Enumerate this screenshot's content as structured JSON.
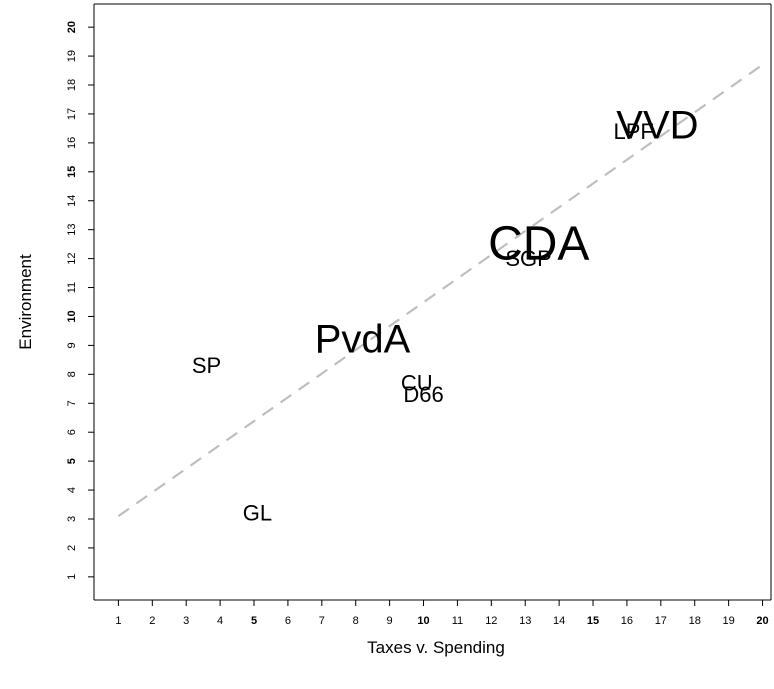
{
  "chart_data": {
    "type": "scatter",
    "title": "",
    "xlabel": "Taxes v. Spending",
    "ylabel": "Environment",
    "xlim": [
      0.28,
      20.25
    ],
    "ylim": [
      0.2,
      20.8
    ],
    "x_ticks": [
      "1",
      "2",
      "3",
      "4",
      "5",
      "6",
      "7",
      "8",
      "9",
      "10",
      "11",
      "12",
      "13",
      "14",
      "15",
      "16",
      "17",
      "18",
      "19",
      "20"
    ],
    "y_ticks": [
      "1",
      "2",
      "3",
      "4",
      "5",
      "6",
      "7",
      "8",
      "9",
      "10",
      "11",
      "12",
      "13",
      "14",
      "15",
      "16",
      "17",
      "18",
      "19",
      "20"
    ],
    "bold_ticks": [
      "5",
      "10",
      "15",
      "20"
    ],
    "grid": false,
    "points": [
      {
        "label": "VVD",
        "x": 16.9,
        "y": 16.6,
        "size": "large"
      },
      {
        "label": "LPF",
        "x": 16.2,
        "y": 16.4,
        "size": "medium"
      },
      {
        "label": "CDA",
        "x": 13.4,
        "y": 12.5,
        "size": "xlarge"
      },
      {
        "label": "SGP",
        "x": 13.1,
        "y": 12.0,
        "size": "medium"
      },
      {
        "label": "PvdA",
        "x": 8.2,
        "y": 9.2,
        "size": "large"
      },
      {
        "label": "SP",
        "x": 3.6,
        "y": 8.3,
        "size": "medium"
      },
      {
        "label": "CU",
        "x": 9.8,
        "y": 7.7,
        "size": "medium"
      },
      {
        "label": "D66",
        "x": 10.0,
        "y": 7.3,
        "size": "medium"
      },
      {
        "label": "GL",
        "x": 5.1,
        "y": 3.2,
        "size": "medium"
      }
    ],
    "trend_line": {
      "x": [
        1,
        20
      ],
      "y": [
        3.1,
        18.7
      ],
      "style": "dashed",
      "color": "#bebebe"
    }
  }
}
